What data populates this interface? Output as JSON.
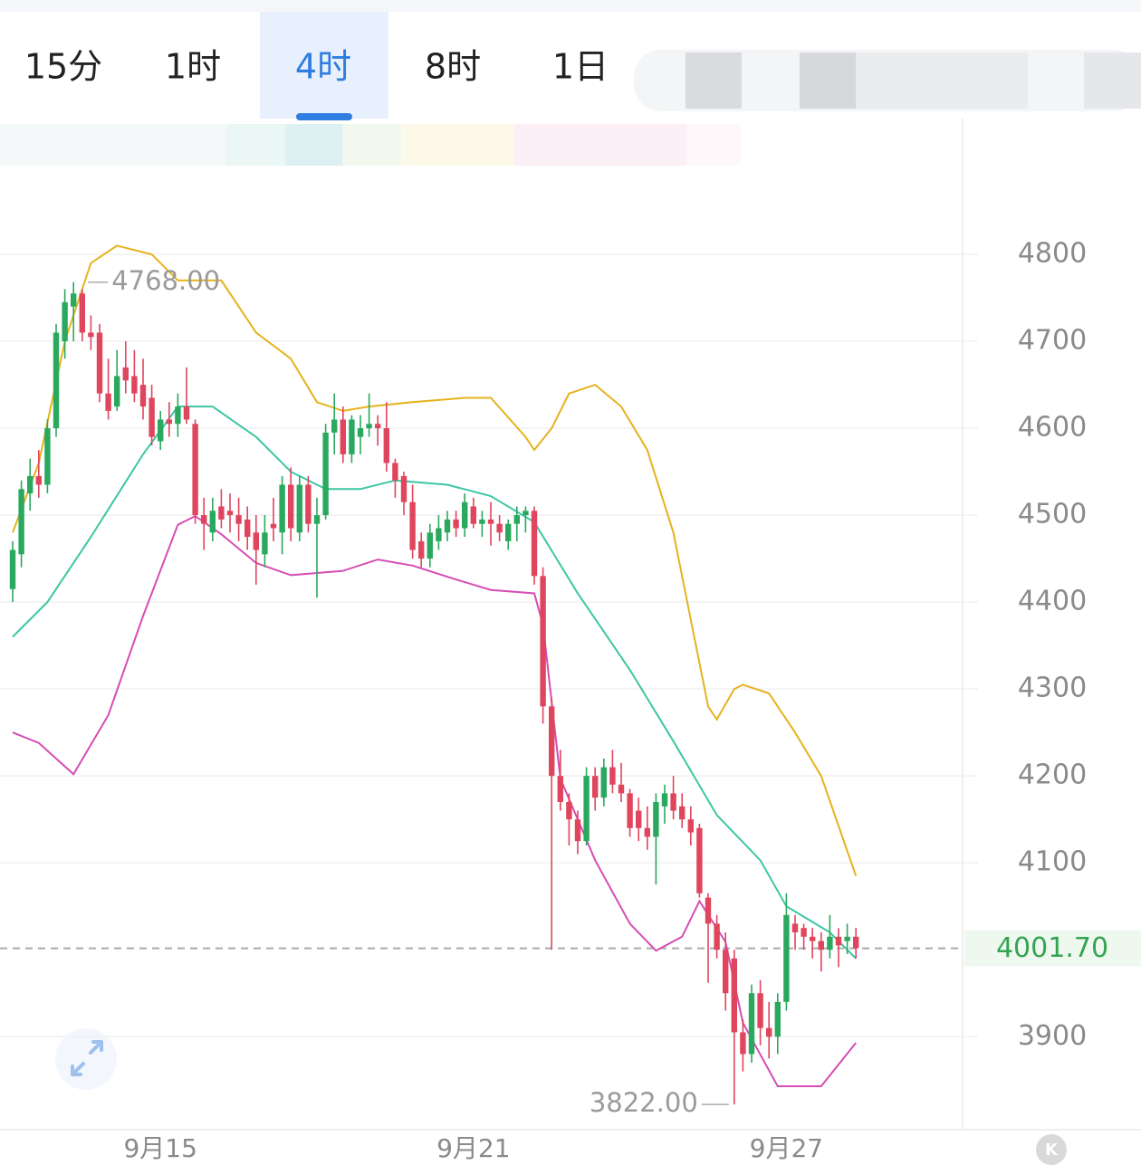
{
  "tabs": [
    "15分",
    "1时",
    "4时",
    "8时",
    "1日"
  ],
  "active_tab": 2,
  "chart_data": {
    "type": "candlestick",
    "categories": [
      null,
      null,
      null,
      null,
      null,
      null,
      null,
      null,
      null,
      null,
      null,
      null,
      null,
      null,
      null,
      null,
      null,
      "9月15",
      null,
      null,
      null,
      null,
      null,
      null,
      null,
      null,
      null,
      null,
      null,
      null,
      null,
      null,
      null,
      null,
      null,
      null,
      null,
      null,
      null,
      null,
      null,
      null,
      null,
      null,
      null,
      null,
      null,
      null,
      null,
      null,
      null,
      null,
      null,
      "9月21",
      null,
      null,
      null,
      null,
      null,
      null,
      null,
      null,
      null,
      null,
      null,
      null,
      null,
      null,
      null,
      null,
      null,
      null,
      null,
      null,
      null,
      null,
      null,
      null,
      null,
      null,
      null,
      null,
      null,
      null,
      null,
      null,
      null,
      null,
      null,
      "9月27",
      null,
      null,
      null,
      null,
      null,
      null,
      null,
      null
    ],
    "open": [
      4415,
      4455,
      4525,
      4545,
      4535,
      4600,
      4700,
      4740,
      4755,
      4710,
      4710,
      4640,
      4625,
      4670,
      4660,
      4650,
      4635,
      4585,
      4610,
      4605,
      4625,
      4605,
      4500,
      4480,
      4510,
      4505,
      4500,
      4495,
      4480,
      4455,
      4490,
      4480,
      4535,
      4480,
      4535,
      4490,
      4500,
      4595,
      4610,
      4570,
      4590,
      4600,
      4605,
      4600,
      4560,
      4545,
      4515,
      4470,
      4450,
      4470,
      4480,
      4495,
      4485,
      4510,
      4490,
      4495,
      4490,
      4470,
      4490,
      4500,
      4505,
      4430,
      4280,
      4200,
      4170,
      4150,
      4125,
      4200,
      4175,
      4210,
      4190,
      4180,
      4160,
      4140,
      4130,
      4165,
      4180,
      4165,
      4150,
      4140,
      4060,
      4030,
      4000,
      3990,
      3905,
      3880,
      3950,
      3910,
      3900,
      3940,
      4030,
      4025,
      4015,
      4010,
      4000,
      4015,
      4010,
      4015
    ],
    "high": [
      4470,
      4540,
      4565,
      4575,
      4610,
      4720,
      4760,
      4768,
      4760,
      4730,
      4720,
      4680,
      4690,
      4700,
      4690,
      4680,
      4650,
      4620,
      4630,
      4640,
      4670,
      4610,
      4520,
      4520,
      4530,
      4525,
      4520,
      4510,
      4500,
      4500,
      4520,
      4545,
      4555,
      4545,
      4545,
      4520,
      4605,
      4640,
      4625,
      4615,
      4615,
      4640,
      4615,
      4630,
      4565,
      4550,
      4535,
      4480,
      4490,
      4500,
      4505,
      4505,
      4525,
      4520,
      4505,
      4515,
      4500,
      4495,
      4510,
      4510,
      4510,
      4440,
      4290,
      4230,
      4180,
      4160,
      4210,
      4210,
      4220,
      4230,
      4215,
      4185,
      4175,
      4165,
      4180,
      4190,
      4200,
      4180,
      4165,
      4145,
      4065,
      4040,
      4020,
      4000,
      3920,
      3960,
      3965,
      3940,
      3950,
      4065,
      4040,
      4030,
      4025,
      4020,
      4040,
      4025,
      4030,
      4025
    ],
    "low": [
      4400,
      4440,
      4505,
      4520,
      4525,
      4590,
      4680,
      4700,
      4700,
      4690,
      4630,
      4610,
      4620,
      4640,
      4630,
      4610,
      4580,
      4575,
      4590,
      4590,
      4605,
      4490,
      4460,
      4470,
      4485,
      4480,
      4470,
      4460,
      4420,
      4440,
      4470,
      4455,
      4470,
      4470,
      4480,
      4405,
      4495,
      4570,
      4560,
      4560,
      4570,
      4590,
      4580,
      4550,
      4520,
      4500,
      4450,
      4440,
      4440,
      4460,
      4470,
      4475,
      4475,
      4485,
      4475,
      4465,
      4470,
      4460,
      4470,
      4480,
      4420,
      4260,
      4000,
      4160,
      4120,
      4110,
      4120,
      4160,
      4165,
      4180,
      4170,
      4130,
      4125,
      4115,
      4075,
      4145,
      4150,
      4140,
      4120,
      4060,
      3962,
      3990,
      3930,
      3822,
      3860,
      3870,
      3890,
      3875,
      3880,
      3930,
      4000,
      4000,
      3990,
      3975,
      3990,
      3980,
      3995,
      3990
    ],
    "close": [
      4460,
      4530,
      4545,
      4535,
      4600,
      4710,
      4745,
      4755,
      4710,
      4705,
      4640,
      4620,
      4660,
      4655,
      4640,
      4625,
      4590,
      4610,
      4605,
      4625,
      4610,
      4500,
      4490,
      4505,
      4495,
      4500,
      4490,
      4475,
      4460,
      4480,
      4485,
      4535,
      4485,
      4535,
      4490,
      4500,
      4595,
      4610,
      4570,
      4610,
      4600,
      4605,
      4600,
      4560,
      4540,
      4515,
      4460,
      4450,
      4480,
      4485,
      4495,
      4485,
      4515,
      4490,
      4495,
      4490,
      4480,
      4490,
      4500,
      4505,
      4430,
      4280,
      4200,
      4170,
      4150,
      4125,
      4200,
      4175,
      4210,
      4190,
      4180,
      4140,
      4140,
      4130,
      4170,
      4180,
      4160,
      4150,
      4135,
      4065,
      4030,
      4000,
      3950,
      3905,
      3880,
      3950,
      3910,
      3900,
      3940,
      4040,
      4020,
      4015,
      4010,
      4000,
      4015,
      4005,
      4015,
      4001.7
    ],
    "up_color": "#2aa95e",
    "down_color": "#e0455e",
    "bands": [
      {
        "color": "#e6b21c",
        "x": [
          0,
          3,
          6,
          9,
          12,
          16,
          19,
          24,
          28,
          32,
          35,
          38,
          41,
          46,
          52,
          55,
          59,
          60,
          62,
          64,
          67,
          70,
          73,
          76,
          79,
          80,
          81,
          83,
          84,
          87,
          90,
          93,
          97
        ],
        "values": [
          4480,
          4560,
          4700,
          4790,
          4810,
          4800,
          4770,
          4770,
          4710,
          4680,
          4630,
          4620,
          4625,
          4630,
          4635,
          4635,
          4590,
          4575,
          4600,
          4640,
          4650,
          4625,
          4575,
          4480,
          4330,
          4280,
          4265,
          4300,
          4305,
          4295,
          4250,
          4200,
          4085
        ]
      },
      {
        "color": "#3cc6a4",
        "x": [
          0,
          4,
          9,
          15,
          19,
          23,
          28,
          32,
          36,
          40,
          44,
          50,
          55,
          60,
          65,
          71,
          76,
          81,
          86,
          89,
          94,
          97
        ],
        "values": [
          4360,
          4400,
          4475,
          4570,
          4625,
          4625,
          4590,
          4550,
          4530,
          4530,
          4540,
          4535,
          4522,
          4492,
          4410,
          4322,
          4240,
          4155,
          4103,
          4050,
          4020,
          3990
        ]
      },
      {
        "color": "#d64db4",
        "x": [
          0,
          3,
          7,
          11,
          15,
          19,
          21,
          24,
          28,
          32,
          38,
          42,
          46,
          51,
          55,
          60,
          61,
          63,
          67,
          71,
          74,
          77,
          79,
          82,
          84,
          88,
          93,
          97
        ],
        "values": [
          4250,
          4238,
          4202,
          4270,
          4384,
          4489,
          4499,
          4478,
          4445,
          4431,
          4436,
          4449,
          4442,
          4426,
          4414,
          4410,
          4374,
          4197,
          4103,
          4030,
          3999,
          4015,
          4056,
          4009,
          3916,
          3843,
          3843,
          3893
        ]
      }
    ],
    "ylim": [
      3793,
      4900
    ],
    "yticks": [
      3900,
      4100,
      4200,
      4300,
      4400,
      4500,
      4600,
      4700,
      4800
    ],
    "grid": true,
    "max_marker": {
      "index": 7,
      "value": 4768,
      "label": "4768.00"
    },
    "min_marker": {
      "index": 83,
      "value": 3822,
      "label": "3822.00"
    },
    "last_price": {
      "value": 4001.7,
      "label": "4001.70"
    },
    "logo": "K"
  }
}
